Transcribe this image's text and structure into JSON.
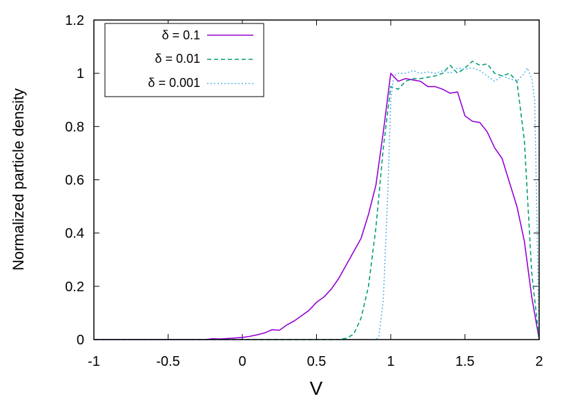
{
  "chart_data": {
    "type": "line",
    "xlabel": "V",
    "ylabel": "Normalized particle density",
    "xlim": [
      -1,
      2
    ],
    "ylim": [
      0,
      1.2
    ],
    "xticks": [
      "-1",
      "-0.5",
      "0",
      "0.5",
      "1",
      "1.5",
      "2"
    ],
    "yticks": [
      "0",
      "0.2",
      "0.4",
      "0.6",
      "0.8",
      "1",
      "1.2"
    ],
    "grid": false,
    "legend_position": "top-left",
    "series": [
      {
        "name": "δ = 0.1",
        "color": "#9400d3",
        "dash": "solid",
        "x": [
          -1.0,
          -0.25,
          -0.2,
          -0.15,
          -0.1,
          -0.05,
          0.0,
          0.05,
          0.1,
          0.15,
          0.2,
          0.25,
          0.3,
          0.35,
          0.4,
          0.45,
          0.5,
          0.55,
          0.6,
          0.65,
          0.7,
          0.75,
          0.8,
          0.85,
          0.9,
          0.95,
          1.0,
          1.05,
          1.1,
          1.15,
          1.2,
          1.25,
          1.3,
          1.35,
          1.4,
          1.45,
          1.5,
          1.55,
          1.6,
          1.65,
          1.7,
          1.75,
          1.8,
          1.85,
          1.9,
          1.95,
          2.0
        ],
        "y": [
          0.0,
          0.0,
          0.003,
          0.002,
          0.004,
          0.006,
          0.008,
          0.012,
          0.018,
          0.025,
          0.037,
          0.035,
          0.055,
          0.07,
          0.09,
          0.11,
          0.14,
          0.16,
          0.19,
          0.23,
          0.28,
          0.33,
          0.38,
          0.47,
          0.58,
          0.78,
          1.0,
          0.97,
          0.98,
          0.975,
          0.97,
          0.95,
          0.95,
          0.94,
          0.925,
          0.93,
          0.84,
          0.82,
          0.815,
          0.78,
          0.72,
          0.68,
          0.59,
          0.5,
          0.37,
          0.16,
          0.0
        ]
      },
      {
        "name": "δ = 0.01",
        "color": "#009e73",
        "dash": "dashed",
        "x": [
          -1.0,
          0.65,
          0.7,
          0.75,
          0.8,
          0.85,
          0.9,
          0.95,
          1.0,
          1.05,
          1.1,
          1.15,
          1.2,
          1.25,
          1.3,
          1.35,
          1.4,
          1.45,
          1.5,
          1.55,
          1.6,
          1.65,
          1.7,
          1.75,
          1.8,
          1.85,
          1.9,
          1.95,
          2.0
        ],
        "y": [
          0.0,
          0.0,
          0.005,
          0.02,
          0.08,
          0.2,
          0.42,
          0.72,
          0.95,
          0.94,
          0.97,
          0.98,
          0.98,
          0.985,
          0.99,
          1.0,
          1.03,
          1.0,
          1.02,
          1.045,
          1.03,
          1.035,
          1.0,
          0.99,
          1.0,
          0.97,
          0.75,
          0.25,
          0.0
        ]
      },
      {
        "name": "δ = 0.001",
        "color": "#56b4e9",
        "dash": "dotted",
        "x": [
          -1.0,
          0.9,
          0.92,
          0.95,
          0.98,
          1.0,
          1.02,
          1.05,
          1.1,
          1.15,
          1.2,
          1.25,
          1.3,
          1.35,
          1.4,
          1.45,
          1.5,
          1.55,
          1.6,
          1.65,
          1.7,
          1.75,
          1.8,
          1.85,
          1.9,
          1.92,
          1.95,
          1.97,
          2.0
        ],
        "y": [
          0.0,
          0.0,
          0.01,
          0.15,
          0.55,
          0.9,
          0.99,
          1.0,
          1.0,
          1.01,
          1.0,
          1.005,
          1.0,
          1.01,
          1.0,
          1.02,
          1.015,
          1.02,
          1.01,
          0.99,
          0.97,
          0.99,
          0.98,
          0.97,
          1.0,
          1.02,
          0.98,
          0.9,
          0.0
        ]
      }
    ]
  }
}
